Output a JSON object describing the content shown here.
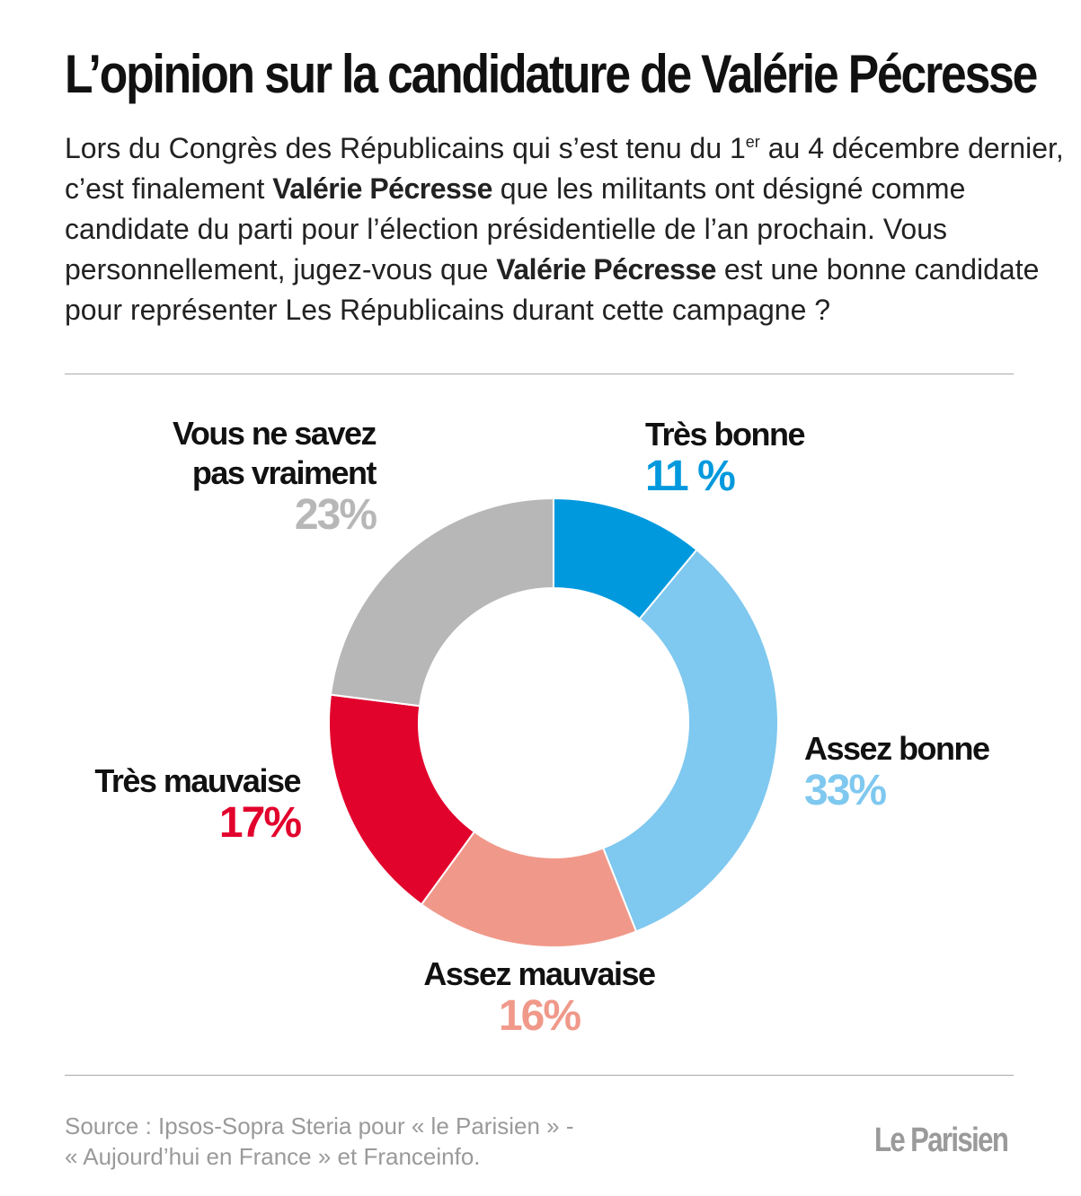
{
  "header": {
    "title": "L’opinion sur la candidature de Valérie Pécresse",
    "intro_p1": "Lors du Congrès des Républicains qui s’est tenu du 1",
    "intro_sup": "er",
    "intro_p2": " au 4 décembre dernier, c’est finalement ",
    "intro_bold1": "Valérie Pécresse",
    "intro_p3": " que les militants ont désigné comme candidate du parti pour l’élection présidentielle de l’an prochain. Vous personnellement, jugez-vous que ",
    "intro_bold2": "Valérie Pécresse",
    "intro_p4": " est une bonne candidate pour représenter Les Républicains durant cette campagne ?"
  },
  "chart_data": {
    "type": "pie",
    "donut": true,
    "title": "L’opinion sur la candidature de Valérie Pécresse",
    "categories": [
      "Très bonne",
      "Assez bonne",
      "Assez mauvaise",
      "Très mauvaise",
      "Vous ne savez pas vraiment"
    ],
    "values": [
      11,
      33,
      16,
      17,
      23
    ],
    "value_labels": [
      "11 %",
      "33%",
      "16%",
      "17%",
      "23%"
    ],
    "colors": [
      "#0099dd",
      "#7fc8ef",
      "#f0998a",
      "#e2032d",
      "#b7b7b7"
    ],
    "label_lines": [
      [
        "Très bonne"
      ],
      [
        "Assez bonne"
      ],
      [
        "Assez mauvaise"
      ],
      [
        "Très mauvaise"
      ],
      [
        "Vous ne savez",
        "pas vraiment"
      ]
    ]
  },
  "footer": {
    "source_line1": "Source : Ipsos-Sopra Steria pour « le Parisien » -",
    "source_line2": "« Aujourd’hui en France » et Franceinfo.",
    "logo": "Le Parisien"
  }
}
